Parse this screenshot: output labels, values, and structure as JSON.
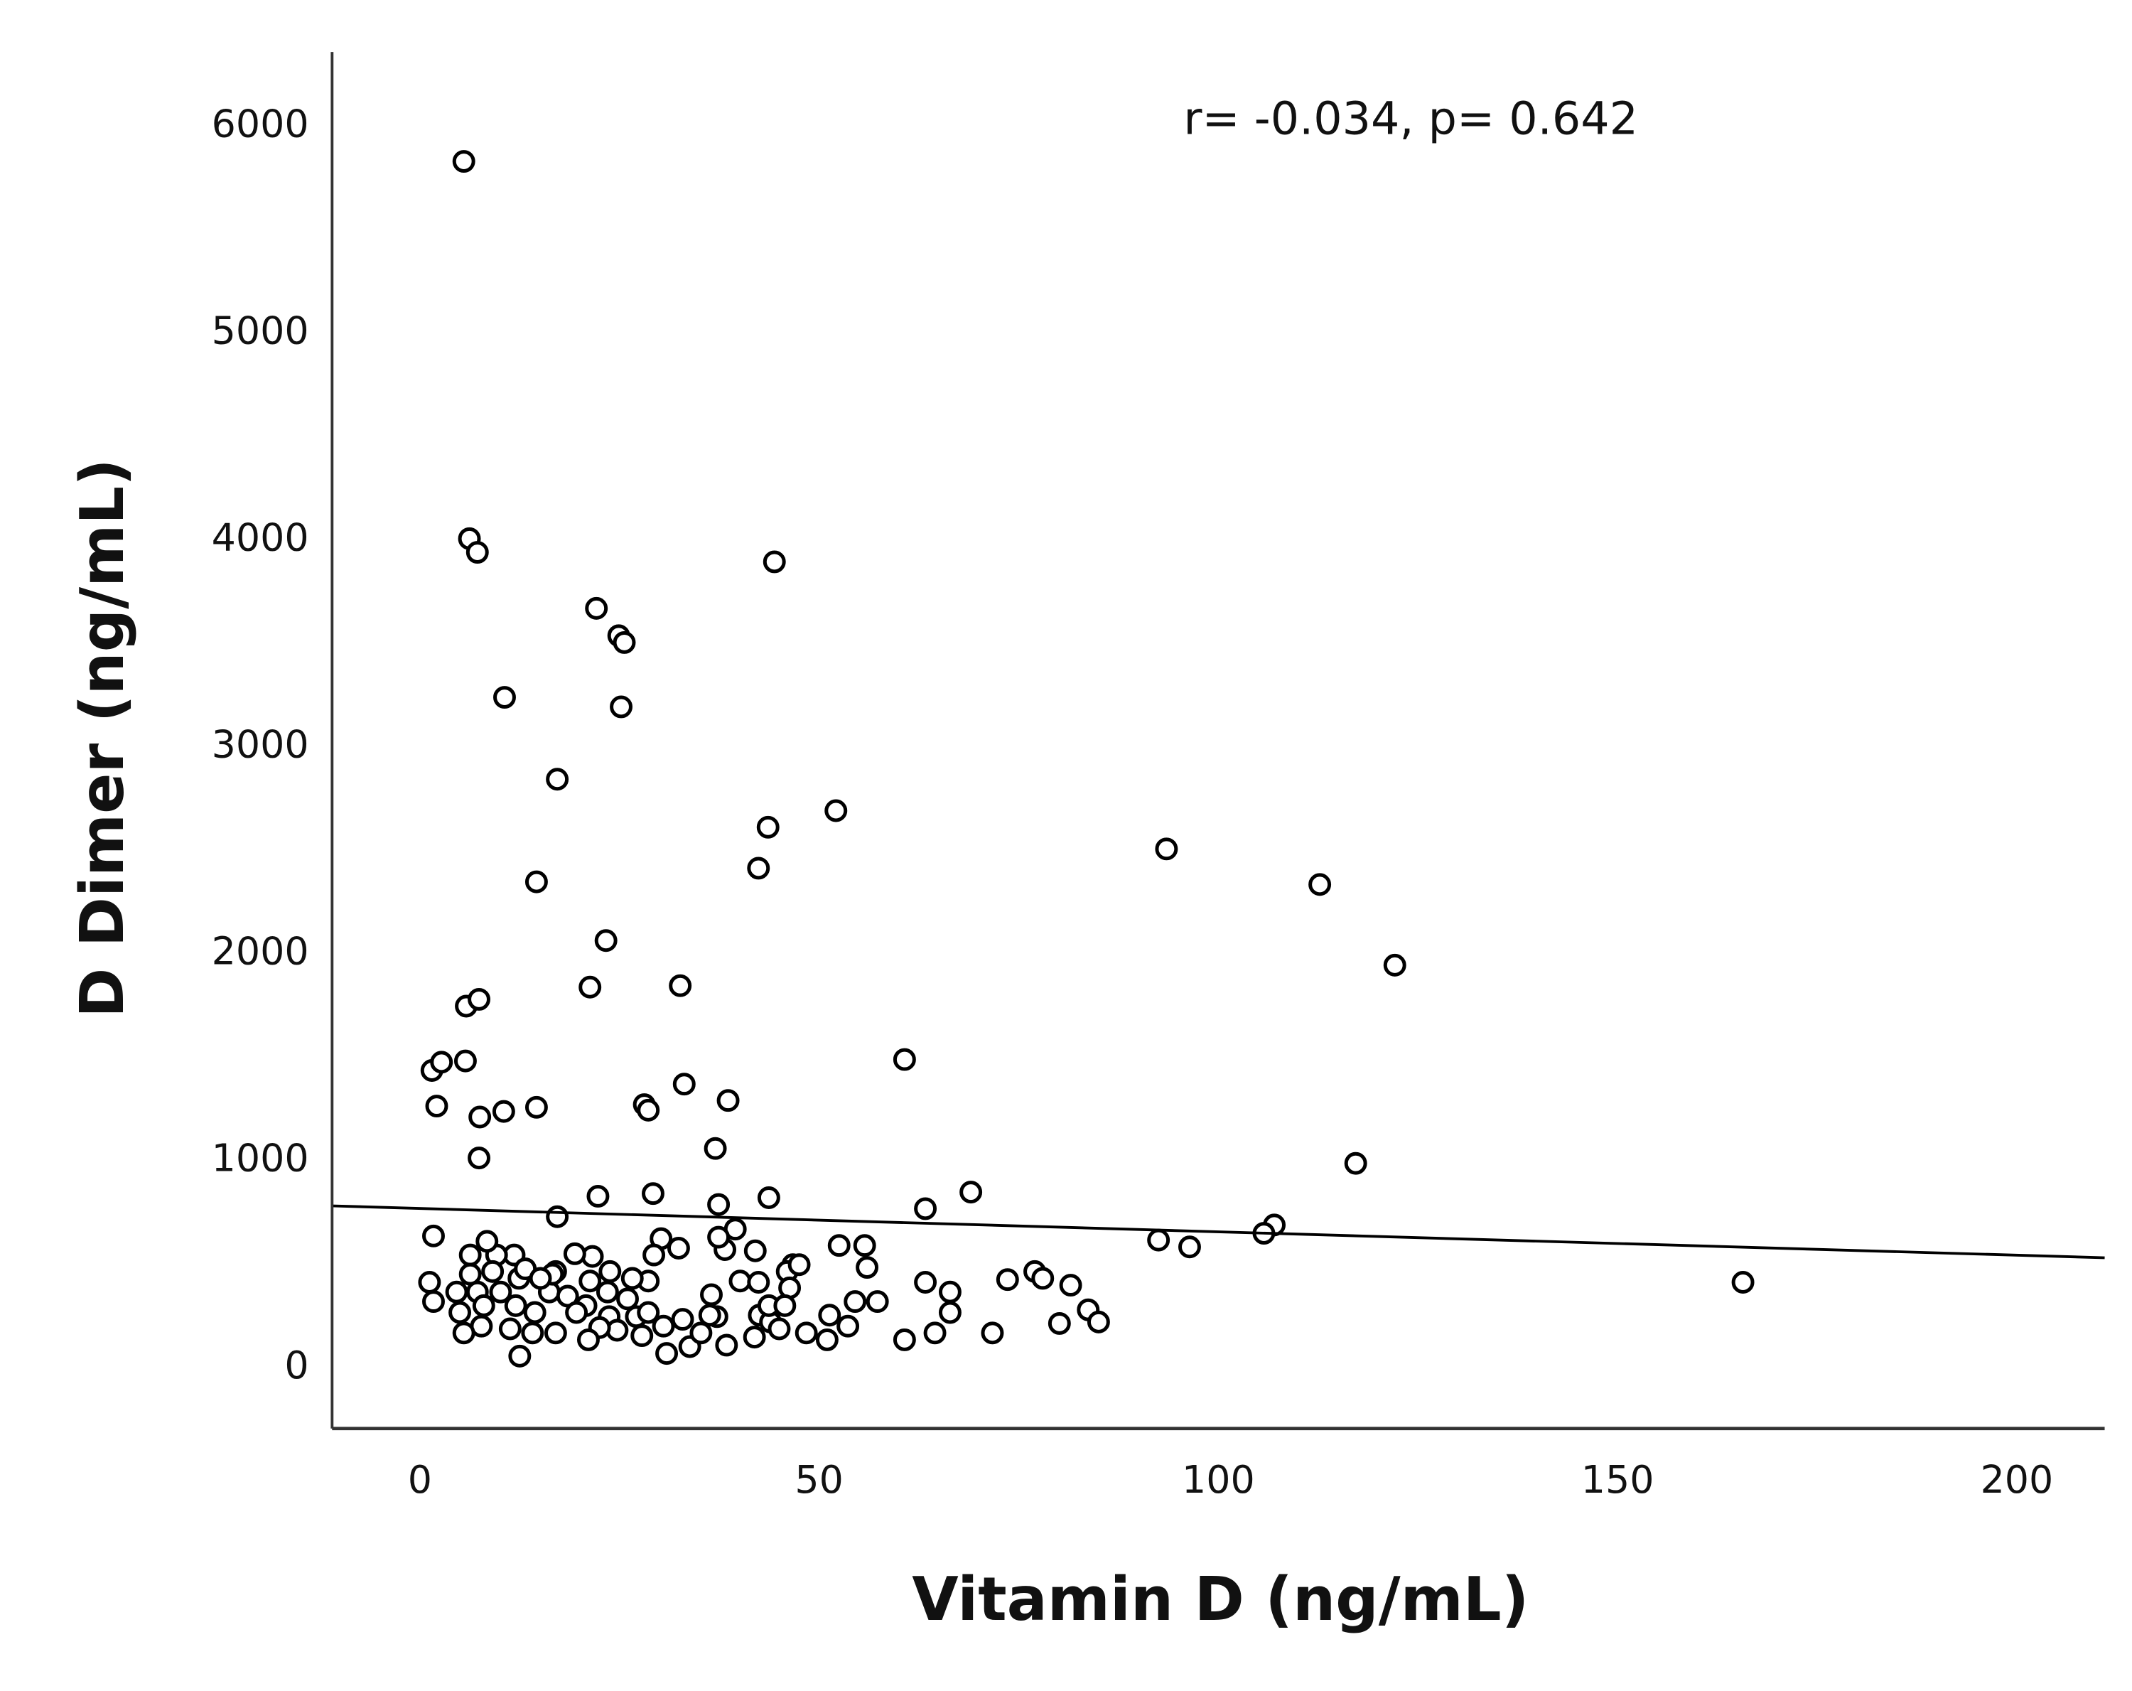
{
  "chart_data": {
    "type": "scatter",
    "title": "",
    "xlabel": "Vitamin D (ng/mL)",
    "ylabel": "D Dimer (ng/mL)",
    "xlim": [
      -11,
      211
    ],
    "ylim": [
      -310,
      6345
    ],
    "x_ticks": [
      0,
      50,
      100,
      150,
      200
    ],
    "x_tick_labels": [
      "0",
      "50",
      "100",
      "150",
      "200"
    ],
    "y_ticks": [
      0,
      1000,
      2000,
      3000,
      4000,
      5000,
      6000
    ],
    "y_tick_labels": [
      "0",
      "1000",
      "2000",
      "3000",
      "4000",
      "5000",
      "6000"
    ],
    "grid": false,
    "marker": "open-circle",
    "marker_color": "#000000",
    "annotation": "r= -0.034, p= 0.642",
    "fit_line": {
      "type": "linear",
      "intercept": 754,
      "slope": -1.13
    },
    "points": [
      [
        5.5,
        5816
      ],
      [
        6.2,
        3992
      ],
      [
        7.2,
        3926
      ],
      [
        44.4,
        3880
      ],
      [
        22.1,
        3655
      ],
      [
        24.9,
        3523
      ],
      [
        25.6,
        3490
      ],
      [
        10.6,
        3225
      ],
      [
        25.2,
        3179
      ],
      [
        17.2,
        2829
      ],
      [
        52.1,
        2677
      ],
      [
        43.6,
        2597
      ],
      [
        42.4,
        2399
      ],
      [
        93.5,
        2492
      ],
      [
        112.7,
        2320
      ],
      [
        14.6,
        2333
      ],
      [
        23.3,
        2049
      ],
      [
        122.1,
        1930
      ],
      [
        21.3,
        1824
      ],
      [
        32.6,
        1831
      ],
      [
        5.8,
        1732
      ],
      [
        7.4,
        1765
      ],
      [
        1.5,
        1421
      ],
      [
        2.7,
        1461
      ],
      [
        5.7,
        1467
      ],
      [
        60.7,
        1474
      ],
      [
        2.1,
        1249
      ],
      [
        7.5,
        1196
      ],
      [
        10.5,
        1223
      ],
      [
        14.6,
        1243
      ],
      [
        28.1,
        1256
      ],
      [
        28.6,
        1229
      ],
      [
        33.1,
        1355
      ],
      [
        38.6,
        1276
      ],
      [
        37.0,
        1044
      ],
      [
        7.4,
        998
      ],
      [
        117.2,
        972
      ],
      [
        69.0,
        833
      ],
      [
        29.2,
        826
      ],
      [
        22.3,
        813
      ],
      [
        43.7,
        806
      ],
      [
        63.3,
        753
      ],
      [
        37.4,
        773
      ],
      [
        17.2,
        714
      ],
      [
        107.0,
        674
      ],
      [
        105.7,
        634
      ],
      [
        92.5,
        601
      ],
      [
        96.4,
        568
      ],
      [
        165.7,
        397
      ],
      [
        1.7,
        621
      ],
      [
        52.5,
        575
      ],
      [
        55.7,
        575
      ],
      [
        56,
        469
      ],
      [
        46.7,
        482
      ],
      [
        46,
        449
      ],
      [
        46.3,
        370
      ],
      [
        42,
        549
      ],
      [
        39.5,
        654
      ],
      [
        38.2,
        555
      ],
      [
        37.4,
        615
      ],
      [
        40.1,
        403
      ],
      [
        36.5,
        337
      ],
      [
        37.2,
        231
      ],
      [
        42.5,
        238
      ],
      [
        43.9,
        205
      ],
      [
        45,
        172
      ],
      [
        41.9,
        132
      ],
      [
        38.4,
        93
      ],
      [
        33.8,
        86
      ],
      [
        30.9,
        53
      ],
      [
        30.5,
        185
      ],
      [
        32.9,
        218
      ],
      [
        32.4,
        562
      ],
      [
        30.2,
        608
      ],
      [
        29.3,
        529
      ],
      [
        28.6,
        403
      ],
      [
        26.6,
        416
      ],
      [
        23.8,
        449
      ],
      [
        23.5,
        350
      ],
      [
        23.7,
        231
      ],
      [
        24.7,
        165
      ],
      [
        22.5,
        178
      ],
      [
        21.1,
        119
      ],
      [
        20.8,
        284
      ],
      [
        21.3,
        403
      ],
      [
        21.6,
        522
      ],
      [
        19.4,
        535
      ],
      [
        17,
        449
      ],
      [
        16.2,
        350
      ],
      [
        17,
        152
      ],
      [
        14.1,
        152
      ],
      [
        12.5,
        40
      ],
      [
        11.3,
        172
      ],
      [
        12,
        284
      ],
      [
        12.4,
        416
      ],
      [
        11.8,
        529
      ],
      [
        9.6,
        529
      ],
      [
        8.4,
        595
      ],
      [
        6.3,
        529
      ],
      [
        6.3,
        436
      ],
      [
        7.2,
        350
      ],
      [
        8,
        284
      ],
      [
        7.7,
        185
      ],
      [
        5.5,
        152
      ],
      [
        5,
        251
      ],
      [
        4.6,
        350
      ],
      [
        1.2,
        397
      ],
      [
        1.7,
        304
      ],
      [
        10.1,
        350
      ],
      [
        14.4,
        251
      ],
      [
        18.5,
        330
      ],
      [
        27.1,
        231
      ],
      [
        27.8,
        139
      ],
      [
        35.2,
        152
      ],
      [
        36.3,
        238
      ],
      [
        48.4,
        152
      ],
      [
        51,
        119
      ],
      [
        51.3,
        238
      ],
      [
        53.6,
        185
      ],
      [
        54.5,
        304
      ],
      [
        57.3,
        304
      ],
      [
        60.7,
        119
      ],
      [
        63.3,
        397
      ],
      [
        64.5,
        152
      ],
      [
        66.4,
        350
      ],
      [
        66.4,
        251
      ],
      [
        71.7,
        152
      ],
      [
        73.6,
        410
      ],
      [
        77,
        449
      ],
      [
        78,
        416
      ],
      [
        80.1,
        198
      ],
      [
        81.5,
        383
      ],
      [
        83.7,
        264
      ],
      [
        85,
        205
      ],
      [
        47.5,
        482
      ],
      [
        42.4,
        397
      ],
      [
        43.7,
        284
      ],
      [
        45.7,
        284
      ],
      [
        26,
        317
      ],
      [
        28.6,
        251
      ],
      [
        16.6,
        436
      ],
      [
        19.6,
        251
      ],
      [
        9.1,
        449
      ],
      [
        13.2,
        462
      ],
      [
        15.1,
        416
      ]
    ]
  }
}
